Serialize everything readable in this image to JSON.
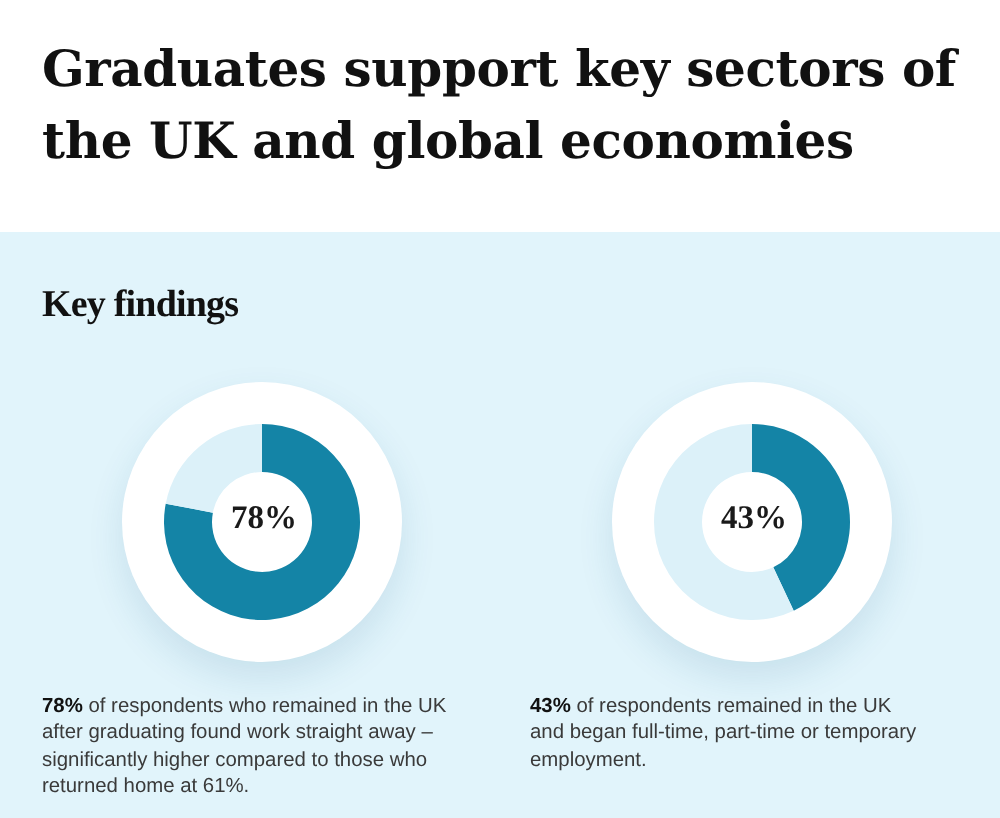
{
  "chart_data": [
    {
      "type": "donut",
      "title": "Graduates support key sectors of the UK and global economies",
      "subtitle": "Key findings",
      "categories": [
        null,
        null
      ],
      "values": [
        78,
        22
      ],
      "colors": [
        "#1484a6",
        "#dcf1f9"
      ],
      "value_labels": [
        "78%",
        null
      ],
      "annotations": [
        "78% of respondents who remained in the UK after graduating found work straight away – significantly higher compared to those who returned home at 61%."
      ]
    },
    {
      "type": "donut",
      "categories": [
        null,
        null
      ],
      "values": [
        43,
        57
      ],
      "colors": [
        "#1484a6",
        "#dcf1f9"
      ],
      "value_labels": [
        "43%",
        null
      ],
      "annotations": [
        "43% of respondents remained in the UK and began full-time, part-time or temporary employment."
      ]
    }
  ]
}
